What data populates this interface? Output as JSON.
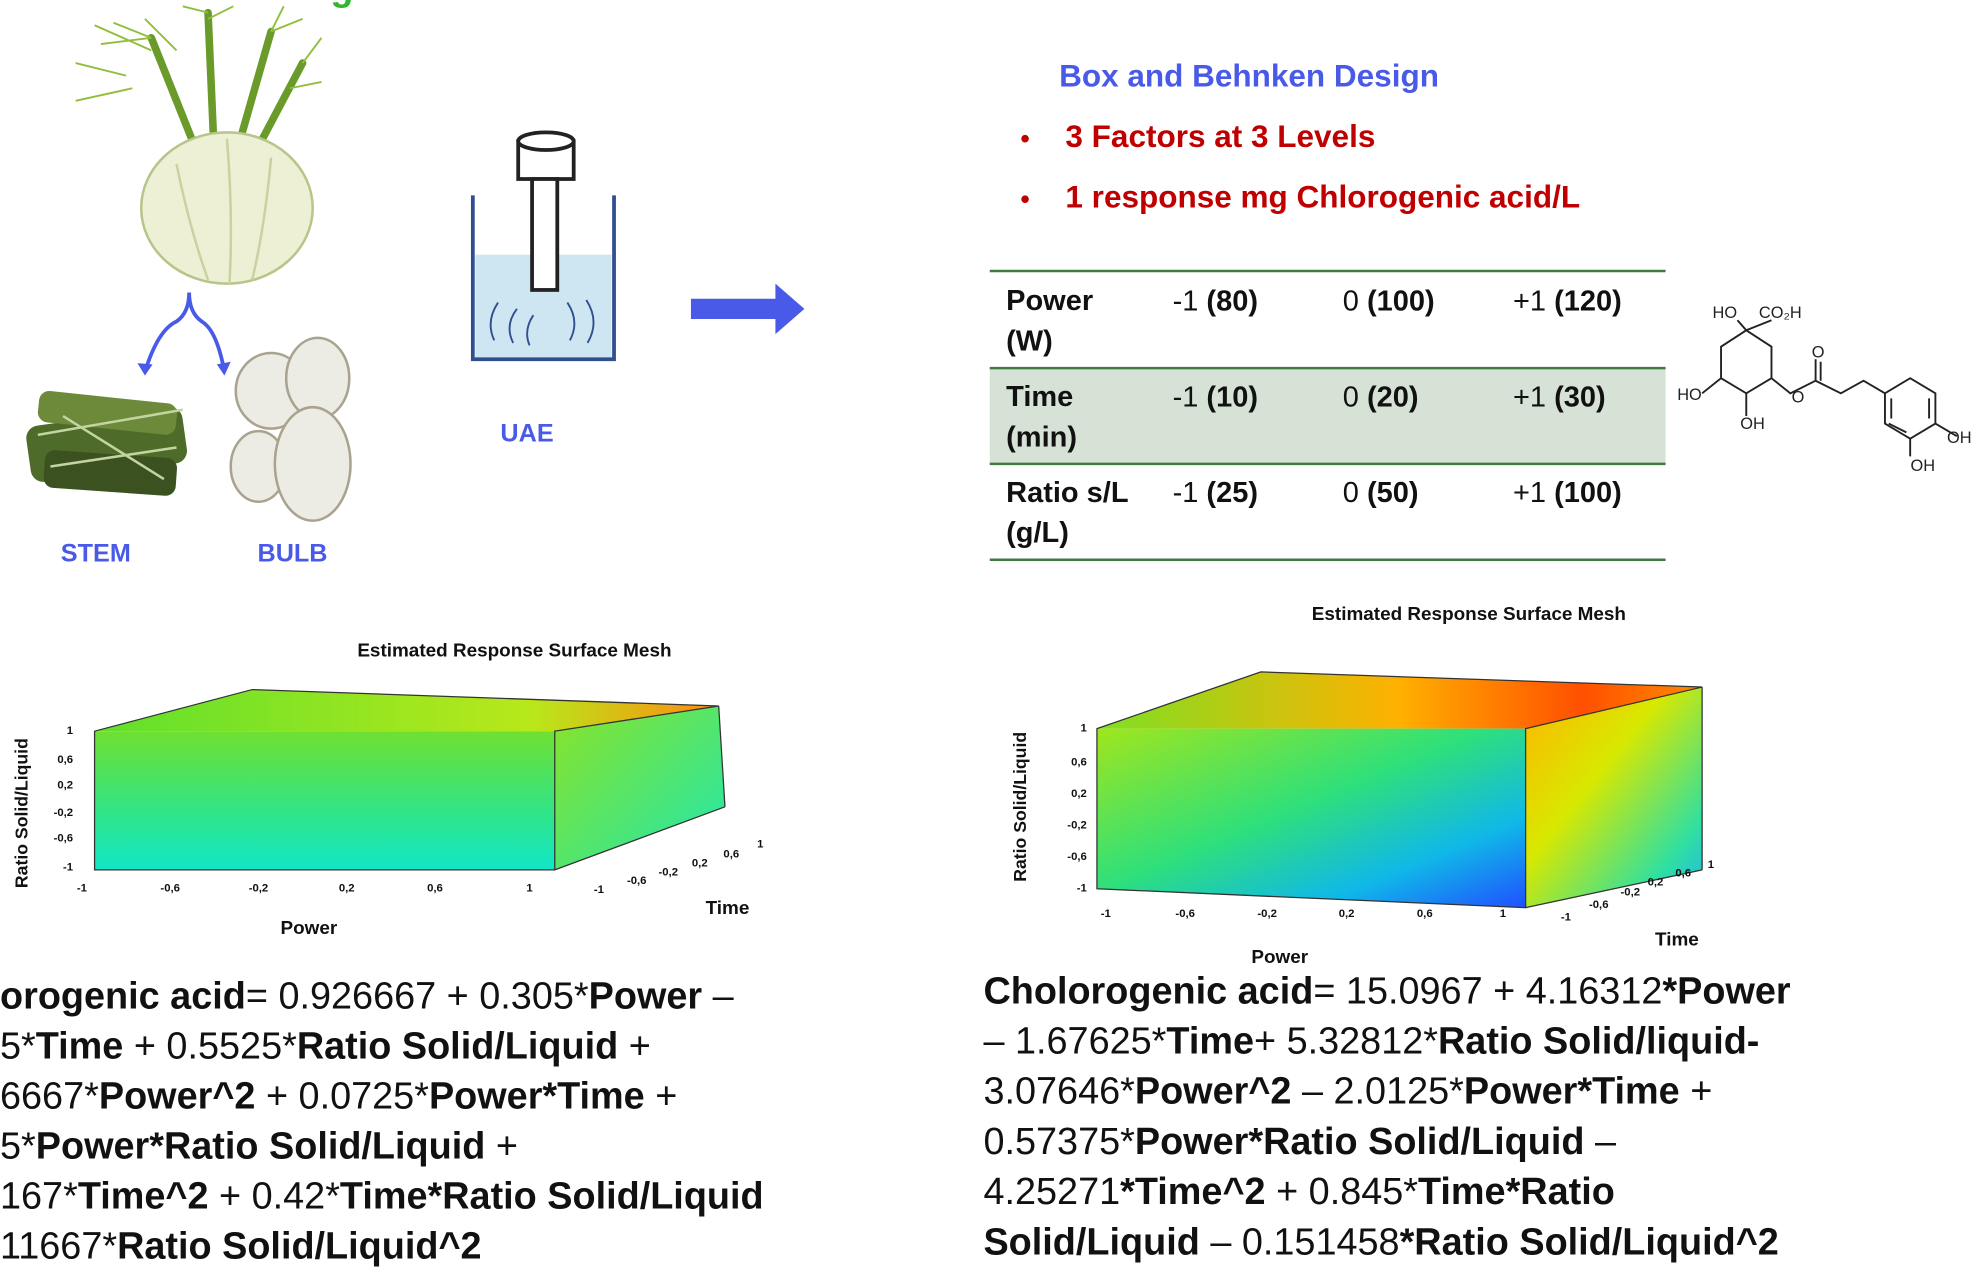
{
  "title_fragment": "g",
  "labels": {
    "stem": "STEM",
    "bulb": "BULB",
    "uae": "UAE"
  },
  "design": {
    "title": "Box and Behnken Design",
    "bullets": [
      "3 Factors at 3 Levels",
      "1 response mg Chlorogenic acid/L"
    ]
  },
  "table": {
    "rows": [
      {
        "name": "Power",
        "unit": "(W)",
        "levels": [
          {
            "code": "-1",
            "value": "(80)"
          },
          {
            "code": "0",
            "value": "(100)"
          },
          {
            "code": "+1",
            "value": "(120)"
          }
        ]
      },
      {
        "name": "Time",
        "unit": "(min)",
        "levels": [
          {
            "code": "-1",
            "value": "(10)"
          },
          {
            "code": "0",
            "value": "(20)"
          },
          {
            "code": "+1",
            "value": "(30)"
          }
        ]
      },
      {
        "name": "Ratio s/L",
        "unit": "(g/L)",
        "levels": [
          {
            "code": "-1",
            "value": "(25)"
          },
          {
            "code": "0",
            "value": "(50)"
          },
          {
            "code": "+1",
            "value": "(100)"
          }
        ]
      }
    ]
  },
  "molecule": {
    "labels": [
      "HO",
      "CO₂H",
      "O",
      "HO",
      "O",
      "OH",
      "OH",
      "OH"
    ]
  },
  "plots": [
    {
      "title": "Estimated Response Surface Mesh",
      "y_label": "Ratio Solid/Liquid",
      "x_label": "Power",
      "z_label": "Time",
      "y_ticks": [
        "1",
        "0,6",
        "0,2",
        "-0,2",
        "-0,6",
        "-1"
      ],
      "x_ticks": [
        "-1",
        "-0,6",
        "-0,2",
        "0,2",
        "0,6",
        "1"
      ],
      "z_ticks": [
        "-1",
        "-0,6",
        "-0,2",
        "0,2",
        "0,6",
        "1"
      ]
    },
    {
      "title": "Estimated Response Surface Mesh",
      "y_label": "Ratio Solid/Liquid",
      "x_label": "Power",
      "z_label": "Time",
      "y_ticks": [
        "1",
        "0,6",
        "0,2",
        "-0,2",
        "-0,6",
        "-1"
      ],
      "x_ticks": [
        "-1",
        "-0,6",
        "-0,2",
        "0,2",
        "0,6",
        "1"
      ],
      "z_ticks": [
        "-1",
        "-0,6",
        "-0,2",
        "0,2",
        "0,6",
        "1"
      ]
    }
  ],
  "equations": [
    {
      "lines": [
        [
          {
            "text": "orogenic acid",
            "bold": true
          },
          {
            "text": "= 0.926667 + 0.305*",
            "bold": false
          },
          {
            "text": "Power",
            "bold": true
          },
          {
            "text": " –",
            "bold": false
          }
        ],
        [
          {
            "text": "5*",
            "bold": false
          },
          {
            "text": "Time",
            "bold": true
          },
          {
            "text": " + 0.5525*",
            "bold": false
          },
          {
            "text": "Ratio Solid/Liquid",
            "bold": true
          },
          {
            "text": " +",
            "bold": false
          }
        ],
        [
          {
            "text": "6667*",
            "bold": false
          },
          {
            "text": "Power^2",
            "bold": true
          },
          {
            "text": " + 0.0725*",
            "bold": false
          },
          {
            "text": "Power*Time",
            "bold": true
          },
          {
            "text": " +",
            "bold": false
          }
        ],
        [
          {
            "text": "5*",
            "bold": false
          },
          {
            "text": "Power*Ratio Solid/Liquid",
            "bold": true
          },
          {
            "text": " +",
            "bold": false
          }
        ],
        [
          {
            "text": "167*",
            "bold": false
          },
          {
            "text": "Time^2",
            "bold": true
          },
          {
            "text": " + 0.42*",
            "bold": false
          },
          {
            "text": "Time*Ratio Solid/Liquid",
            "bold": true
          }
        ],
        [
          {
            "text": "11667*",
            "bold": false
          },
          {
            "text": "Ratio Solid/Liquid^2",
            "bold": true
          }
        ]
      ]
    },
    {
      "lines": [
        [
          {
            "text": "Cholorogenic acid",
            "bold": true
          },
          {
            "text": "= 15.0967 + 4.16312",
            "bold": false
          },
          {
            "text": "*Power",
            "bold": true
          }
        ],
        [
          {
            "text": "– 1.67625*",
            "bold": false
          },
          {
            "text": "Time",
            "bold": true
          },
          {
            "text": "+ 5.32812*",
            "bold": false
          },
          {
            "text": "Ratio Solid/liquid-",
            "bold": true
          }
        ],
        [
          {
            "text": "3.07646*",
            "bold": false
          },
          {
            "text": "Power^2",
            "bold": true
          },
          {
            "text": " – 2.0125*",
            "bold": false
          },
          {
            "text": "Power*Time",
            "bold": true
          },
          {
            "text": " +",
            "bold": false
          }
        ],
        [
          {
            "text": "0.57375*",
            "bold": false
          },
          {
            "text": "Power*Ratio Solid/Liquid",
            "bold": true
          },
          {
            "text": " –",
            "bold": false
          }
        ],
        [
          {
            "text": "4.25271",
            "bold": false
          },
          {
            "text": "*Time^2",
            "bold": true
          },
          {
            "text": " + 0.845*",
            "bold": false
          },
          {
            "text": "Time*Ratio",
            "bold": true
          }
        ],
        [
          {
            "text": "Solid/Liquid",
            "bold": true
          },
          {
            "text": " – 0.151458",
            "bold": false
          },
          {
            "text": "*Ratio Solid/Liquid^2",
            "bold": true
          }
        ]
      ]
    }
  ]
}
